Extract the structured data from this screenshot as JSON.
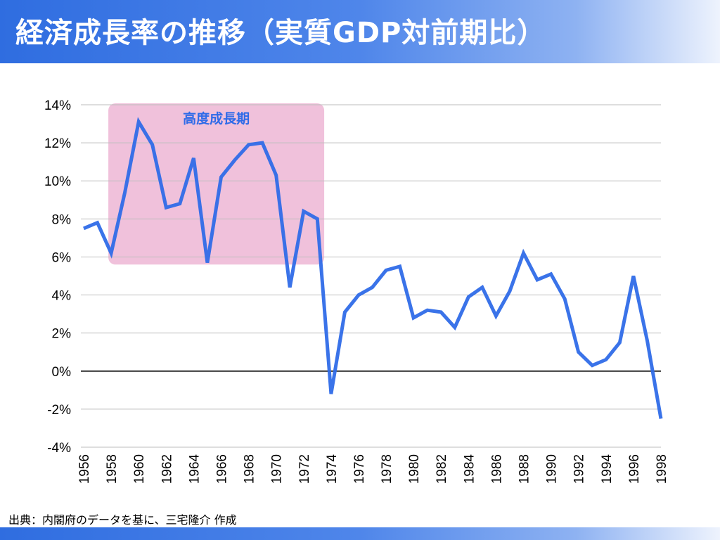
{
  "page": {
    "title": "経済成長率の推移（実質GDP対前期比）",
    "source": "出典：内閣府のデータを基に、三宅隆介 作成"
  },
  "colors": {
    "accent": "#2f6de0",
    "line": "#2f6be8",
    "highlight_fill": "#e8a0c8",
    "gridline": "#bdbdbd",
    "zero_line": "#000000"
  },
  "chart_data": {
    "type": "line",
    "title": "経済成長率の推移（実質GDP対前期比）",
    "xlabel": "",
    "ylabel": "",
    "x": [
      1956,
      1957,
      1958,
      1959,
      1960,
      1961,
      1962,
      1963,
      1964,
      1965,
      1966,
      1967,
      1968,
      1969,
      1970,
      1971,
      1972,
      1973,
      1974,
      1975,
      1976,
      1977,
      1978,
      1979,
      1980,
      1981,
      1982,
      1983,
      1984,
      1985,
      1986,
      1987,
      1988,
      1989,
      1990,
      1991,
      1992,
      1993,
      1994,
      1995,
      1996,
      1997,
      1998
    ],
    "series": [
      {
        "name": "",
        "values": [
          7.5,
          7.8,
          6.2,
          9.4,
          13.1,
          11.9,
          8.6,
          8.8,
          11.2,
          5.7,
          10.2,
          11.1,
          11.9,
          12.0,
          10.3,
          4.4,
          8.4,
          8.0,
          -1.2,
          3.1,
          4.0,
          4.4,
          5.3,
          5.5,
          2.8,
          3.2,
          3.1,
          2.3,
          3.9,
          4.4,
          2.9,
          4.2,
          6.2,
          4.8,
          5.1,
          3.8,
          1.0,
          0.3,
          0.6,
          1.5,
          5.0,
          1.6,
          -2.5
        ]
      }
    ],
    "xlim": [
      1956,
      1998
    ],
    "ylim": [
      -4,
      14
    ],
    "yticks": [
      14,
      12,
      10,
      8,
      6,
      4,
      2,
      0,
      -2,
      -4
    ],
    "ytick_labels": [
      "14%",
      "12%",
      "10%",
      "8%",
      "6%",
      "4%",
      "2%",
      "0%",
      "-2%",
      "-4%"
    ],
    "xticks": [
      1956,
      1958,
      1960,
      1962,
      1964,
      1966,
      1968,
      1970,
      1972,
      1974,
      1976,
      1978,
      1980,
      1982,
      1984,
      1986,
      1988,
      1990,
      1992,
      1994,
      1996,
      1998
    ],
    "xtick_labels": [
      "1956",
      "1958",
      "1960",
      "1962",
      "1964",
      "1966",
      "1968",
      "1970",
      "1972",
      "1974",
      "1976",
      "1978",
      "1980",
      "1982",
      "1984",
      "1986",
      "1988",
      "1990",
      "1992",
      "1994",
      "1996",
      "1998"
    ],
    "grid": "horizontal",
    "annotations": [
      {
        "label": "高度成長期",
        "x_start": 1958,
        "x_end": 1973.5,
        "y_start": 5.6,
        "y_end": 14
      }
    ]
  }
}
